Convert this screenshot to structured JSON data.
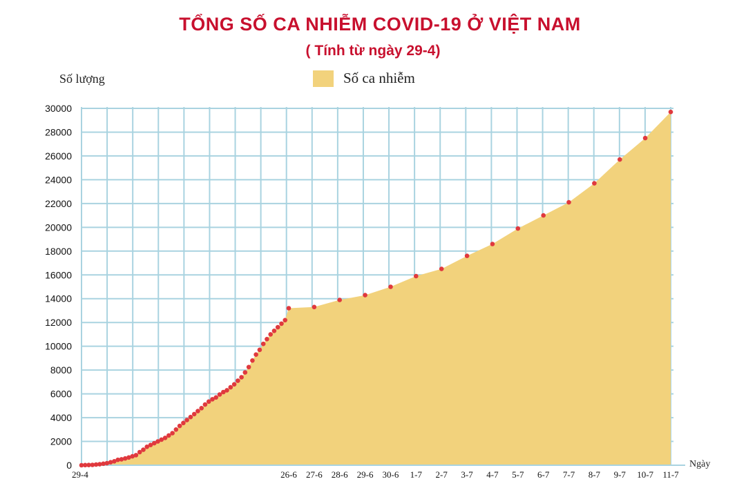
{
  "title": "TỔNG SỐ CA NHIỄM COVID-19 Ở VIỆT NAM",
  "subtitle": "( Tính từ ngày 29-4)",
  "colors": {
    "title": "#c8102e",
    "area": "#f2d27c",
    "grid": "#a9d3e0",
    "points": "#e0393e"
  },
  "chart_data": {
    "type": "area",
    "ylabel": "Số lượng",
    "xlabel": "Ngày",
    "legend": {
      "label": "Số ca nhiễm",
      "placement": "top-center"
    },
    "ylim": [
      0,
      30000
    ],
    "yticks": [
      0,
      2000,
      4000,
      6000,
      8000,
      10000,
      12000,
      14000,
      16000,
      18000,
      20000,
      22000,
      24000,
      26000,
      28000,
      30000
    ],
    "grid": true,
    "x_tick_labels": [
      "29-4",
      "26-6",
      "27-6",
      "28-6",
      "29-6",
      "30-6",
      "1-7",
      "2-7",
      "3-7",
      "4-7",
      "5-7",
      "6-7",
      "7-7",
      "8-7",
      "9-7",
      "10-7",
      "11-7"
    ],
    "series": [
      {
        "name": "Số ca nhiễm",
        "early_period_values": [
          0,
          10,
          20,
          30,
          60,
          80,
          130,
          170,
          250,
          330,
          450,
          500,
          570,
          650,
          750,
          850,
          1100,
          1300,
          1550,
          1700,
          1850,
          2000,
          2150,
          2300,
          2500,
          2700,
          3000,
          3300,
          3550,
          3800,
          4050,
          4300,
          4550,
          4800,
          5100,
          5350,
          5550,
          5700,
          5950,
          6150,
          6300,
          6550,
          6800,
          7100,
          7400,
          7800,
          8250,
          8800,
          9300,
          9700,
          10200,
          10600,
          11000,
          11300,
          11600,
          11900,
          12200,
          13200
        ],
        "daily_points": [
          {
            "date": "26-6",
            "value": 13200
          },
          {
            "date": "27-6",
            "value": 13300
          },
          {
            "date": "28-6",
            "value": 13900
          },
          {
            "date": "29-6",
            "value": 14300
          },
          {
            "date": "30-6",
            "value": 15000
          },
          {
            "date": "1-7",
            "value": 15900
          },
          {
            "date": "2-7",
            "value": 16500
          },
          {
            "date": "3-7",
            "value": 17600
          },
          {
            "date": "4-7",
            "value": 18600
          },
          {
            "date": "5-7",
            "value": 19900
          },
          {
            "date": "6-7",
            "value": 21000
          },
          {
            "date": "7-7",
            "value": 22100
          },
          {
            "date": "8-7",
            "value": 23700
          },
          {
            "date": "9-7",
            "value": 25700
          },
          {
            "date": "10-7",
            "value": 27500
          },
          {
            "date": "11-7",
            "value": 29700
          }
        ]
      }
    ]
  }
}
